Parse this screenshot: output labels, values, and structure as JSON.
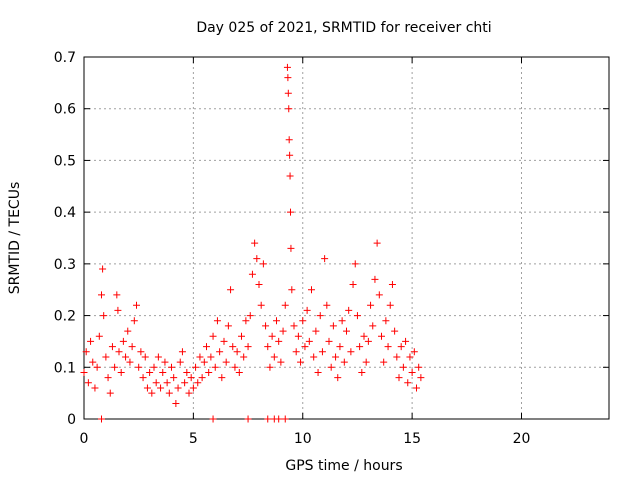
{
  "chart_data": {
    "type": "scatter",
    "title": "Day 025 of 2021, SRMTID for receiver chti",
    "xlabel": "GPS time / hours",
    "ylabel": "SRMTID / TECUs",
    "xlim": [
      0,
      24
    ],
    "ylim": [
      0,
      0.7
    ],
    "xticks": [
      0,
      5,
      10,
      15,
      20
    ],
    "yticks": [
      0,
      0.1,
      0.2,
      0.3,
      0.4,
      0.5,
      0.6,
      0.7
    ],
    "xtick_labels": [
      "0",
      "5",
      "10",
      "15",
      "20"
    ],
    "ytick_labels": [
      "0",
      "0.1",
      "0.2",
      "0.3",
      "0.4",
      "0.5",
      "0.6",
      "0.7"
    ],
    "grid": true,
    "marker": "+",
    "color": "#ff0000",
    "series": [
      {
        "name": "SRMTID",
        "points": [
          [
            0.0,
            0.09
          ],
          [
            0.1,
            0.13
          ],
          [
            0.2,
            0.07
          ],
          [
            0.3,
            0.15
          ],
          [
            0.4,
            0.11
          ],
          [
            0.5,
            0.06
          ],
          [
            0.6,
            0.1
          ],
          [
            0.7,
            0.16
          ],
          [
            0.8,
            0.24
          ],
          [
            0.85,
            0.29
          ],
          [
            0.9,
            0.2
          ],
          [
            1.0,
            0.12
          ],
          [
            1.1,
            0.08
          ],
          [
            1.2,
            0.05
          ],
          [
            1.3,
            0.14
          ],
          [
            1.4,
            0.1
          ],
          [
            1.5,
            0.24
          ],
          [
            1.55,
            0.21
          ],
          [
            1.6,
            0.13
          ],
          [
            1.7,
            0.09
          ],
          [
            1.8,
            0.15
          ],
          [
            1.9,
            0.12
          ],
          [
            2.0,
            0.17
          ],
          [
            2.1,
            0.11
          ],
          [
            2.2,
            0.14
          ],
          [
            2.3,
            0.19
          ],
          [
            2.4,
            0.22
          ],
          [
            2.5,
            0.1
          ],
          [
            2.6,
            0.13
          ],
          [
            2.7,
            0.08
          ],
          [
            2.8,
            0.12
          ],
          [
            2.9,
            0.06
          ],
          [
            3.0,
            0.09
          ],
          [
            3.1,
            0.05
          ],
          [
            3.2,
            0.1
          ],
          [
            3.3,
            0.07
          ],
          [
            3.4,
            0.12
          ],
          [
            3.5,
            0.06
          ],
          [
            3.6,
            0.09
          ],
          [
            3.7,
            0.11
          ],
          [
            3.8,
            0.07
          ],
          [
            3.9,
            0.05
          ],
          [
            4.0,
            0.1
          ],
          [
            4.1,
            0.08
          ],
          [
            4.2,
            0.03
          ],
          [
            4.3,
            0.06
          ],
          [
            4.4,
            0.11
          ],
          [
            4.5,
            0.13
          ],
          [
            4.6,
            0.07
          ],
          [
            4.7,
            0.09
          ],
          [
            4.8,
            0.05
          ],
          [
            4.9,
            0.08
          ],
          [
            5.0,
            0.06
          ],
          [
            5.1,
            0.1
          ],
          [
            5.2,
            0.07
          ],
          [
            5.3,
            0.12
          ],
          [
            5.4,
            0.08
          ],
          [
            5.5,
            0.11
          ],
          [
            5.6,
            0.14
          ],
          [
            5.7,
            0.09
          ],
          [
            5.8,
            0.12
          ],
          [
            5.9,
            0.16
          ],
          [
            6.0,
            0.1
          ],
          [
            6.1,
            0.19
          ],
          [
            6.2,
            0.13
          ],
          [
            6.3,
            0.08
          ],
          [
            6.4,
            0.15
          ],
          [
            6.5,
            0.11
          ],
          [
            6.6,
            0.18
          ],
          [
            6.7,
            0.25
          ],
          [
            6.8,
            0.14
          ],
          [
            6.9,
            0.1
          ],
          [
            7.0,
            0.13
          ],
          [
            7.1,
            0.09
          ],
          [
            7.2,
            0.16
          ],
          [
            7.3,
            0.12
          ],
          [
            7.4,
            0.19
          ],
          [
            7.5,
            0.14
          ],
          [
            7.6,
            0.2
          ],
          [
            7.7,
            0.28
          ],
          [
            7.8,
            0.34
          ],
          [
            7.9,
            0.31
          ],
          [
            8.0,
            0.26
          ],
          [
            8.1,
            0.22
          ],
          [
            8.2,
            0.3
          ],
          [
            8.3,
            0.18
          ],
          [
            8.4,
            0.14
          ],
          [
            8.5,
            0.1
          ],
          [
            8.6,
            0.16
          ],
          [
            8.7,
            0.12
          ],
          [
            8.8,
            0.19
          ],
          [
            8.9,
            0.15
          ],
          [
            9.0,
            0.11
          ],
          [
            9.1,
            0.17
          ],
          [
            9.2,
            0.22
          ],
          [
            9.3,
            0.68
          ],
          [
            9.32,
            0.66
          ],
          [
            9.34,
            0.63
          ],
          [
            9.36,
            0.6
          ],
          [
            9.38,
            0.54
          ],
          [
            9.4,
            0.51
          ],
          [
            9.42,
            0.47
          ],
          [
            9.44,
            0.4
          ],
          [
            9.46,
            0.33
          ],
          [
            9.5,
            0.25
          ],
          [
            9.6,
            0.18
          ],
          [
            9.7,
            0.13
          ],
          [
            9.8,
            0.16
          ],
          [
            9.9,
            0.11
          ],
          [
            10.0,
            0.19
          ],
          [
            10.1,
            0.14
          ],
          [
            10.2,
            0.21
          ],
          [
            10.3,
            0.15
          ],
          [
            10.4,
            0.25
          ],
          [
            10.5,
            0.12
          ],
          [
            10.6,
            0.17
          ],
          [
            10.7,
            0.09
          ],
          [
            10.8,
            0.2
          ],
          [
            10.9,
            0.13
          ],
          [
            11.0,
            0.31
          ],
          [
            11.1,
            0.22
          ],
          [
            11.2,
            0.15
          ],
          [
            11.3,
            0.1
          ],
          [
            11.4,
            0.18
          ],
          [
            11.5,
            0.12
          ],
          [
            11.6,
            0.08
          ],
          [
            11.7,
            0.14
          ],
          [
            11.8,
            0.19
          ],
          [
            11.9,
            0.11
          ],
          [
            12.0,
            0.17
          ],
          [
            12.1,
            0.21
          ],
          [
            12.2,
            0.13
          ],
          [
            12.3,
            0.26
          ],
          [
            12.4,
            0.3
          ],
          [
            12.5,
            0.2
          ],
          [
            12.6,
            0.14
          ],
          [
            12.7,
            0.09
          ],
          [
            12.8,
            0.16
          ],
          [
            12.9,
            0.11
          ],
          [
            13.0,
            0.15
          ],
          [
            13.1,
            0.22
          ],
          [
            13.2,
            0.18
          ],
          [
            13.3,
            0.27
          ],
          [
            13.4,
            0.34
          ],
          [
            13.5,
            0.24
          ],
          [
            13.6,
            0.16
          ],
          [
            13.7,
            0.11
          ],
          [
            13.8,
            0.19
          ],
          [
            13.9,
            0.14
          ],
          [
            14.0,
            0.22
          ],
          [
            14.1,
            0.26
          ],
          [
            14.2,
            0.17
          ],
          [
            14.3,
            0.12
          ],
          [
            14.4,
            0.08
          ],
          [
            14.5,
            0.14
          ],
          [
            14.6,
            0.1
          ],
          [
            14.7,
            0.15
          ],
          [
            14.8,
            0.07
          ],
          [
            14.9,
            0.12
          ],
          [
            15.0,
            0.09
          ],
          [
            15.1,
            0.13
          ],
          [
            15.2,
            0.06
          ],
          [
            15.3,
            0.1
          ],
          [
            15.4,
            0.08
          ]
        ]
      },
      {
        "name": "zero-level",
        "points": [
          [
            0.8,
            0.0
          ],
          [
            5.9,
            0.0
          ],
          [
            7.5,
            0.0
          ],
          [
            8.4,
            0.0
          ],
          [
            8.7,
            0.0
          ],
          [
            8.9,
            0.0
          ],
          [
            9.2,
            0.0
          ]
        ]
      }
    ]
  }
}
